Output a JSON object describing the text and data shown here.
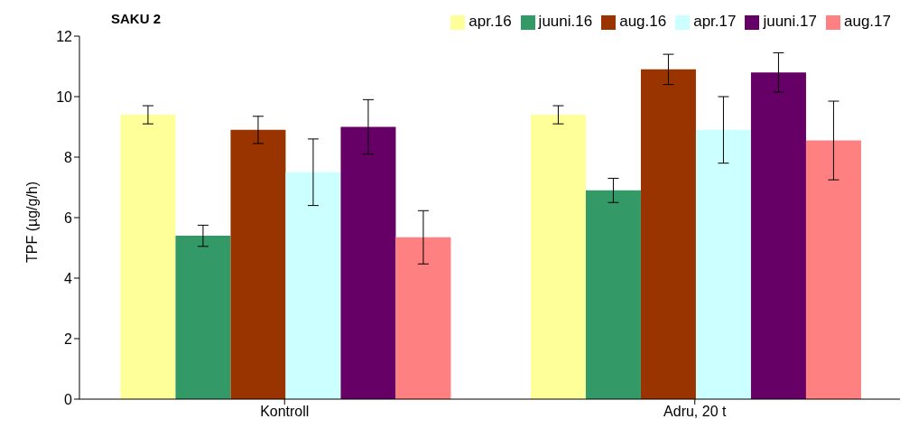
{
  "chart_data": {
    "type": "bar",
    "title": "SAKU 2",
    "ylabel": "TPF (µg/g/h)",
    "categories": [
      "Kontroll",
      "Adru, 20 t"
    ],
    "series": [
      {
        "name": "apr.16",
        "color": "#ffff99",
        "values": [
          9.4,
          9.4
        ],
        "errors": [
          0.3,
          0.3
        ]
      },
      {
        "name": "juuni.16",
        "color": "#339966",
        "values": [
          5.4,
          6.9
        ],
        "errors": [
          0.35,
          0.4
        ]
      },
      {
        "name": "aug.16",
        "color": "#993300",
        "values": [
          8.9,
          10.9
        ],
        "errors": [
          0.45,
          0.5
        ]
      },
      {
        "name": "apr.17",
        "color": "#ccffff",
        "values": [
          7.5,
          8.9
        ],
        "errors": [
          1.1,
          1.1
        ]
      },
      {
        "name": "juuni.17",
        "color": "#660066",
        "values": [
          9.0,
          10.8
        ],
        "errors": [
          0.9,
          0.65
        ]
      },
      {
        "name": "aug.17",
        "color": "#ff8080",
        "values": [
          5.35,
          8.55
        ],
        "errors": [
          0.88,
          1.3
        ]
      }
    ],
    "ylim": [
      0,
      12
    ],
    "yticks": [
      0,
      2,
      4,
      6,
      8,
      10,
      12
    ],
    "grid": false,
    "legend": "top right"
  }
}
